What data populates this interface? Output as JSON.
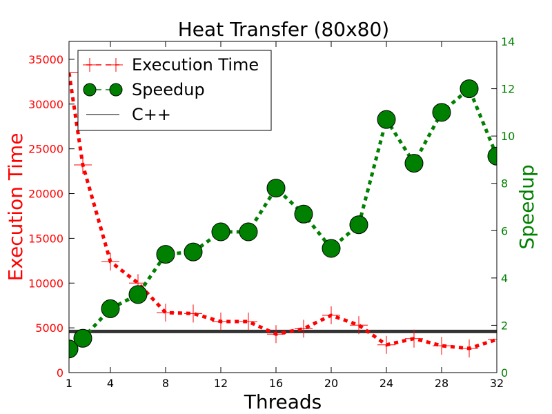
{
  "chart_data": {
    "type": "line",
    "title": "Heat Transfer (80x80)",
    "xlabel": "Threads",
    "ylabel_left": "Execution Time",
    "ylabel_right": "Speedup",
    "xlim": [
      1,
      32
    ],
    "ylim_left": [
      0,
      37000
    ],
    "ylim_right": [
      0,
      14
    ],
    "x_ticks": [
      1,
      4,
      8,
      12,
      16,
      20,
      24,
      28,
      32
    ],
    "y_ticks_left": [
      0,
      5000,
      10000,
      15000,
      20000,
      25000,
      30000,
      35000
    ],
    "y_ticks_right": [
      0,
      2,
      4,
      6,
      8,
      10,
      12,
      14
    ],
    "legend_position": "top-left",
    "colors": {
      "execution_time": "#ff0000",
      "speedup": "#008000",
      "cpp": "#333333",
      "left_axis": "#ff0000",
      "right_axis": "#008000"
    },
    "series": [
      {
        "name": "Execution Time",
        "axis": "left",
        "style": "dashed-plus",
        "x": [
          1,
          2,
          4,
          6,
          8,
          10,
          12,
          14,
          16,
          18,
          20,
          22,
          24,
          26,
          28,
          30,
          32
        ],
        "values": [
          33500,
          23200,
          12400,
          10000,
          6700,
          6600,
          5700,
          5700,
          4300,
          4900,
          6400,
          5300,
          3100,
          3800,
          3000,
          2700,
          3700
        ]
      },
      {
        "name": "Speedup",
        "axis": "right",
        "style": "dashed-circle",
        "x": [
          1,
          2,
          4,
          6,
          8,
          10,
          12,
          14,
          16,
          18,
          20,
          22,
          24,
          26,
          28,
          30,
          32
        ],
        "values": [
          1.0,
          1.45,
          2.7,
          3.3,
          5.0,
          5.1,
          5.95,
          5.95,
          7.8,
          6.7,
          5.25,
          6.25,
          10.7,
          8.85,
          11.0,
          12.0,
          9.15
        ]
      },
      {
        "name": "C++",
        "axis": "left",
        "style": "solid",
        "value": 4600
      }
    ]
  }
}
